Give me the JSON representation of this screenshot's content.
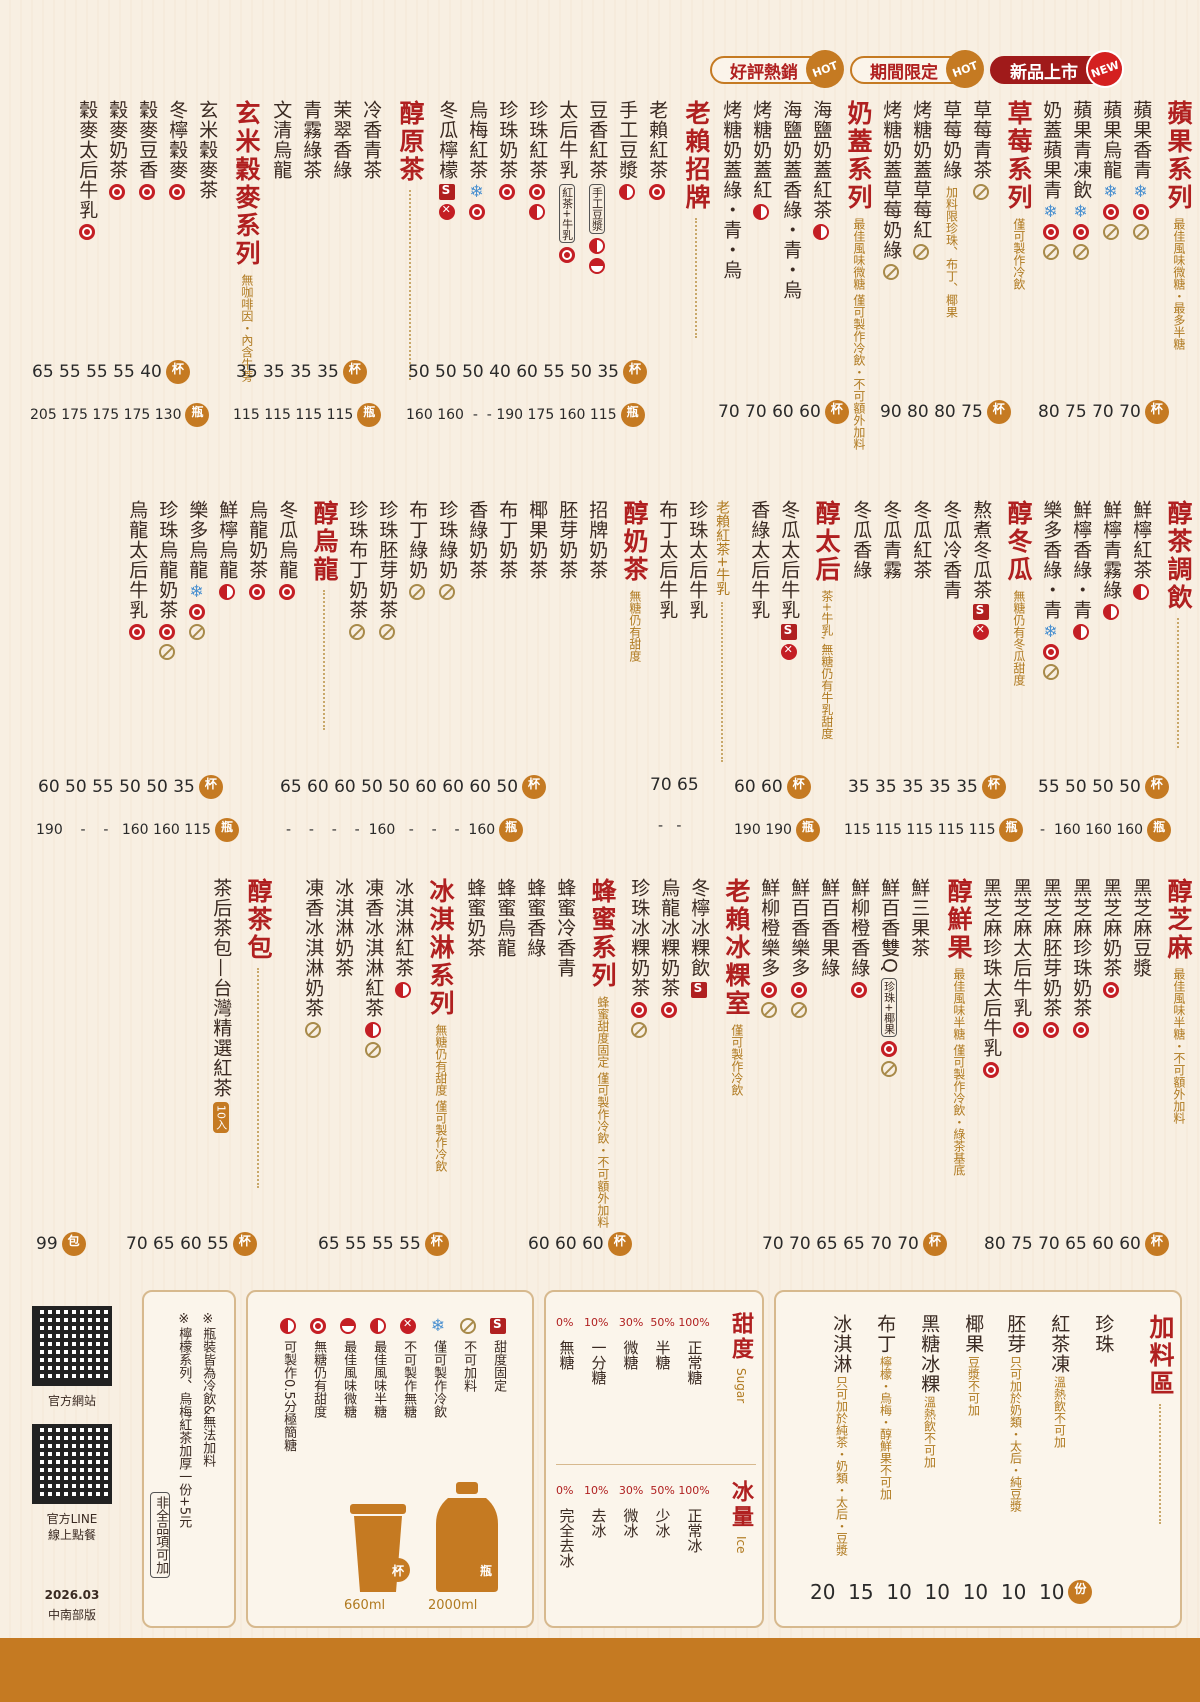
{
  "tabs": [
    {
      "label": "好評熱銷",
      "badge": "HOT"
    },
    {
      "label": "期間限定",
      "badge": "HOT"
    },
    {
      "label": "新品上市",
      "badge": "NEW"
    }
  ],
  "band1": {
    "apple": {
      "title": "蘋果系列",
      "note": "最佳風味微糖・最多半糖",
      "items": [
        "蘋果香青",
        "蘋果烏龍",
        "蘋果青凍飲",
        "奶蓋蘋果青"
      ],
      "cup": [
        "70",
        "70",
        "75",
        "80"
      ]
    },
    "strawberry": {
      "title": "草莓系列",
      "note": "僅可製作冷飲",
      "items": [
        "草莓青茶",
        "草莓奶綠",
        "烤糖奶蓋草莓紅",
        "烤糖奶蓋草莓奶綠"
      ],
      "item_note": "加料限珍珠、布丁、椰果",
      "cup": [
        "75",
        "80",
        "80",
        "90"
      ]
    },
    "milkcap": {
      "title": "奶蓋系列",
      "note": "最佳風味微糖 僅可製作冷飲・不可額外加料",
      "items": [
        "海鹽奶蓋紅茶",
        "海鹽奶蓋香綠・青・烏",
        "烤糖奶蓋紅",
        "烤糖奶蓋綠・青・烏"
      ],
      "cup": [
        "60",
        "60",
        "70",
        "70"
      ]
    },
    "signature": {
      "title": "老賴招牌",
      "items": [
        "老賴紅茶",
        "手工豆漿",
        "豆香紅茶",
        "太后牛乳",
        "珍珠紅茶",
        "珍珠奶茶",
        "烏梅紅茶",
        "冬瓜檸檬"
      ],
      "boxed1": "手工豆漿",
      "boxed2": "紅茶+牛乳",
      "cup": [
        "35",
        "50",
        "55",
        "60",
        "40",
        "50",
        "50",
        "50"
      ],
      "bottle": [
        "115",
        "160",
        "175",
        "190",
        "-",
        "-",
        "160",
        "160"
      ]
    },
    "original": {
      "title": "醇原茶",
      "items": [
        "冷香青茶",
        "茉翠香綠",
        "青霧綠茶",
        "文清烏龍"
      ],
      "cup": [
        "35",
        "35",
        "35",
        "35"
      ],
      "bottle": [
        "115",
        "115",
        "115",
        "115"
      ]
    },
    "grain": {
      "title": "玄米穀麥系列",
      "note": "無咖啡因・內含牛蒡",
      "items": [
        "玄米穀麥茶",
        "冬檸穀麥",
        "穀麥豆香",
        "穀麥奶茶",
        "穀麥太后牛乳"
      ],
      "cup": [
        "40",
        "55",
        "55",
        "55",
        "65"
      ],
      "bottle": [
        "130",
        "175",
        "175",
        "175",
        "205"
      ]
    }
  },
  "band2": {
    "mix": {
      "title": "醇茶調飲",
      "items": [
        "鮮檸紅茶",
        "鮮檸青霧綠",
        "鮮檸香綠・青",
        "樂多香綠・青"
      ],
      "cup": [
        "50",
        "50",
        "50",
        "55"
      ],
      "bottle": [
        "160",
        "160",
        "160",
        "-"
      ]
    },
    "winter": {
      "title": "醇冬瓜",
      "note": "無糖仍有冬瓜甜度",
      "items": [
        "熬煮冬瓜茶",
        "冬瓜冷香青",
        "冬瓜紅茶",
        "冬瓜青霧",
        "冬瓜香綠"
      ],
      "cup": [
        "35",
        "35",
        "35",
        "35",
        "35"
      ],
      "bottle": [
        "115",
        "115",
        "115",
        "115",
        "115"
      ]
    },
    "queen": {
      "title": "醇太后",
      "note": "茶+牛乳, 無糖仍有牛乳甜度",
      "items": [
        "冬瓜太后牛乳",
        "香綠太后牛乳"
      ],
      "cup": [
        "60",
        "60"
      ],
      "bottle": [
        "190",
        "190"
      ]
    },
    "queen2": {
      "title": "老賴紅茶+牛乳",
      "items": [
        "珍珠太后牛乳",
        "布丁太后牛乳"
      ],
      "cup": [
        "65",
        "70"
      ],
      "bottle": [
        "-",
        "-"
      ]
    },
    "milktea": {
      "title": "醇奶茶",
      "note": "無糖仍有甜度",
      "items": [
        "招牌奶茶",
        "胚芽奶茶",
        "椰果奶茶",
        "布丁奶茶",
        "香綠奶茶",
        "珍珠綠奶",
        "布丁綠奶",
        "珍珠胚芽奶茶",
        "珍珠布丁奶茶"
      ],
      "cup": [
        "50",
        "60",
        "60",
        "60",
        "50",
        "50",
        "60",
        "60",
        "65"
      ],
      "bottle": [
        "160",
        "-",
        "-",
        "-",
        "160",
        "-",
        "-",
        "-",
        "-"
      ]
    },
    "oolong": {
      "title": "醇烏龍",
      "items": [
        "冬瓜烏龍",
        "烏龍奶茶",
        "鮮檸烏龍",
        "樂多烏龍",
        "珍珠烏龍奶茶",
        "烏龍太后牛乳"
      ],
      "cup": [
        "35",
        "50",
        "50",
        "55",
        "50",
        "60"
      ],
      "bottle": [
        "115",
        "160",
        "160",
        "-",
        "-",
        "190"
      ]
    }
  },
  "band3": {
    "sesame": {
      "title": "醇芝麻",
      "note": "最佳風味半糖・不可額外加料",
      "items": [
        "黑芝麻豆漿",
        "黑芝麻奶茶",
        "黑芝麻珍珠奶茶",
        "黑芝麻胚芽奶茶",
        "黑芝麻太后牛乳",
        "黑芝麻珍珠太后牛乳"
      ],
      "cup": [
        "60",
        "60",
        "65",
        "70",
        "75",
        "80"
      ]
    },
    "fresh": {
      "title": "醇鮮果",
      "note": "最佳風味半糖 僅可製作冷飲・綠茶基底",
      "items": [
        "鮮三果茶",
        "鮮百香雙Q",
        "鮮柳橙香綠",
        "鮮百香果綠",
        "鮮百香樂多",
        "鮮柳橙樂多"
      ],
      "boxed": "珍珠+椰果",
      "cup": [
        "70",
        "70",
        "65",
        "65",
        "70",
        "70"
      ]
    },
    "ice": {
      "title": "老賴冰粿室",
      "note": "僅可製作冷飲",
      "items": [
        "冬檸冰粿飲",
        "烏龍冰粿奶茶",
        "珍珠冰粿奶茶"
      ],
      "cup": [
        "60",
        "60",
        "60"
      ]
    },
    "honey": {
      "title": "蜂蜜系列",
      "note": "蜂蜜甜度固定 僅可製作冷飲・不可額外加料",
      "items": [
        "蜂蜜冷香青",
        "蜂蜜香綠",
        "蜂蜜烏龍",
        "蜂蜜奶茶"
      ],
      "cup": [
        "55",
        "55",
        "55",
        "65"
      ]
    },
    "icecream": {
      "title": "冰淇淋系列",
      "note": "無糖仍有甜度 僅可製作冷飲",
      "items": [
        "冰淇淋紅茶",
        "凍香冰淇淋紅茶",
        "冰淇淋奶茶",
        "凍香冰淇淋奶茶"
      ],
      "cup": [
        "55",
        "60",
        "65",
        "70"
      ]
    },
    "bag": {
      "title": "醇茶包",
      "items": [
        "茶后茶包—台灣精選紅茶"
      ],
      "tag": "10入",
      "price": "99",
      "badge": "包"
    }
  },
  "badges": {
    "cup": "杯",
    "bottle": "瓶",
    "portion": "份"
  },
  "toppings": {
    "title": "加料區",
    "items": [
      {
        "name": "珍珠",
        "note": "",
        "price": "10"
      },
      {
        "name": "紅茶凍",
        "note": "溫熱飲不可加",
        "price": "10"
      },
      {
        "name": "胚芽",
        "note": "只可加於奶類・太后・純豆漿",
        "price": "10"
      },
      {
        "name": "椰果",
        "note": "豆漿不可加",
        "price": "10"
      },
      {
        "name": "黑糖冰粿",
        "note": "溫熱飲不可加",
        "price": "10"
      },
      {
        "name": "布丁",
        "note": "檸檬・烏梅・醇鮮果不可加",
        "price": "15"
      },
      {
        "name": "冰淇淋",
        "note": "只可加於純茶・奶類・太后・豆漿",
        "price": "20"
      }
    ]
  },
  "sugar": {
    "title": "甜度",
    "en": "Sugar",
    "levels": [
      {
        "p": "100%",
        "t": "正常糖"
      },
      {
        "p": "50%",
        "t": "半糖"
      },
      {
        "p": "30%",
        "t": "微糖"
      },
      {
        "p": "10%",
        "t": "一分糖"
      },
      {
        "p": "0%",
        "t": "無糖"
      }
    ]
  },
  "ice": {
    "title": "冰量",
    "en": "Ice",
    "levels": [
      {
        "p": "100%",
        "t": "正常冰"
      },
      {
        "p": "50%",
        "t": "少冰"
      },
      {
        "p": "30%",
        "t": "微冰"
      },
      {
        "p": "10%",
        "t": "去冰"
      },
      {
        "p": "0%",
        "t": "完全去冰"
      }
    ]
  },
  "legend": [
    {
      "icon": "s",
      "text": "甜度固定"
    },
    {
      "icon": "n",
      "text": "不可加料"
    },
    {
      "icon": "k",
      "text": "僅可製作冷飲"
    },
    {
      "icon": "x",
      "text": "不可製作無糖"
    },
    {
      "icon": "h",
      "text": "最佳風味半糖"
    },
    {
      "icon": "t",
      "text": "最佳風味微糖"
    },
    {
      "icon": "r",
      "text": "無糖仍有甜度"
    },
    {
      "icon": "h",
      "text": "可製作0.5分極簡糖"
    }
  ],
  "sizes": {
    "cup": "660ml",
    "bottle": "2000ml"
  },
  "notes": [
    "※瓶裝皆為冷飲&無法加料",
    "※檸檬系列、烏梅紅茶加厚一份+5元"
  ],
  "notes_box": "非全品項可加",
  "qr": {
    "site": "官方網站",
    "line1": "官方LINE",
    "line2": "線上點餐"
  },
  "version": {
    "date": "2026.03",
    "region": "中南部版"
  }
}
